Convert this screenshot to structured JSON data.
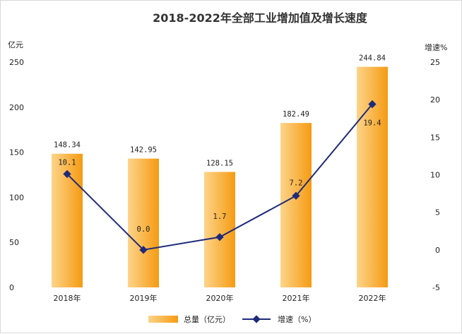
{
  "chart_data": {
    "type": "bar",
    "title": "2018-2022年全部工业增加值及增长速度",
    "categories": [
      "2018年",
      "2019年",
      "2020年",
      "2021年",
      "2022年"
    ],
    "series": [
      {
        "name": "总量（亿元）",
        "type": "bar",
        "axis": "left",
        "values": [
          148.34,
          142.95,
          128.15,
          182.49,
          244.84
        ],
        "labels": [
          "148.34",
          "142.95",
          "128.15",
          "182.49",
          "244.84"
        ]
      },
      {
        "name": "增速（%）",
        "type": "line",
        "axis": "right",
        "values": [
          10.1,
          0.0,
          1.7,
          7.2,
          19.4
        ],
        "labels": [
          "10.1",
          "0.0",
          "1.7",
          "7.2",
          "19.4"
        ]
      }
    ],
    "y_left": {
      "label": "亿元",
      "ylim": [
        0,
        250
      ],
      "ticks": [
        "0",
        "50",
        "100",
        "150",
        "200",
        "250"
      ]
    },
    "y_right": {
      "label": "增速%",
      "ylim": [
        -5,
        25
      ],
      "ticks": [
        "-5",
        "0",
        "5",
        "10",
        "15",
        "20",
        "25"
      ]
    },
    "grid": false,
    "legend_position": "bottom",
    "colors": {
      "bar_light": "#fdd48a",
      "bar_dark": "#f59b12",
      "line": "#1f2a7a",
      "text": "#222222"
    }
  }
}
